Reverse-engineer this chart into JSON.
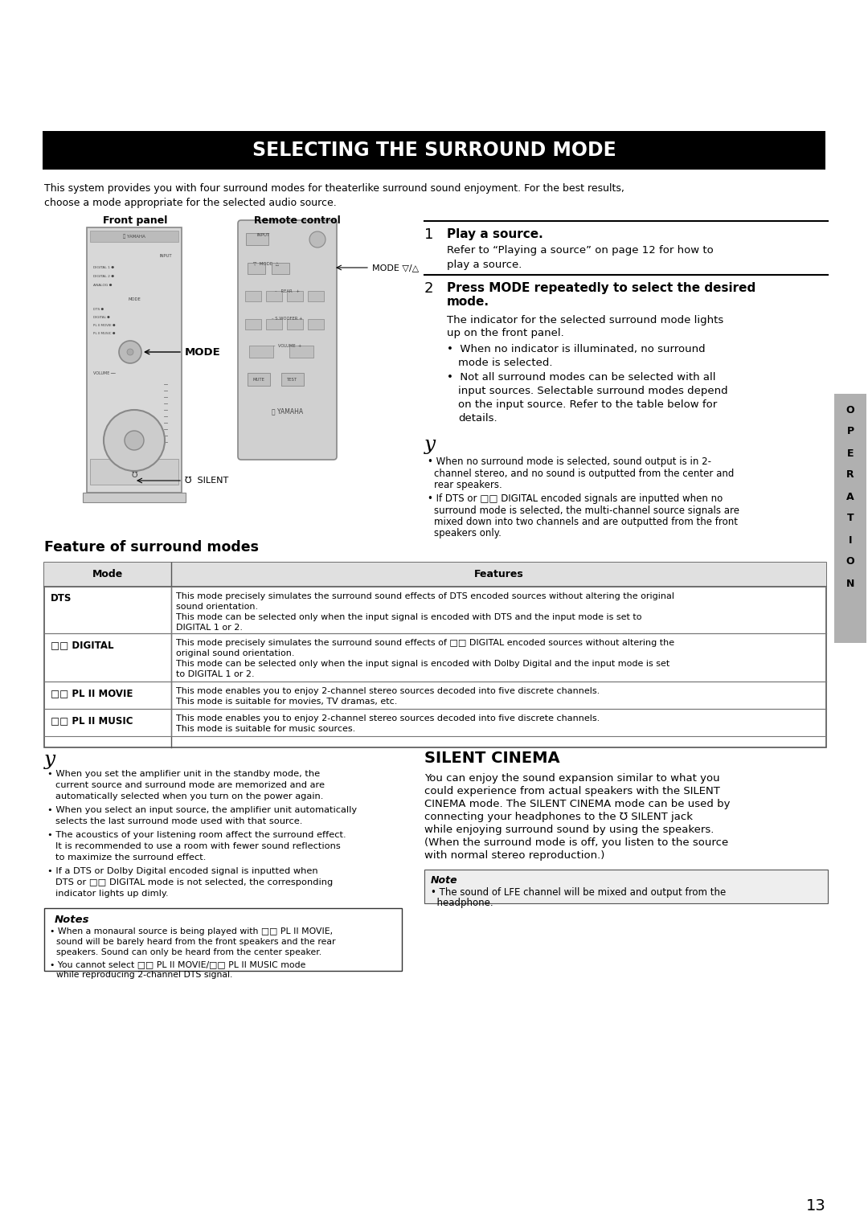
{
  "title": "SELECTING THE SURROUND MODE",
  "title_bg": "#000000",
  "title_color": "#ffffff",
  "page_bg": "#ffffff",
  "page_number": "13",
  "intro_text1": "This system provides you with four surround modes for theaterlike surround sound enjoyment. For the best results,",
  "intro_text2": "choose a mode appropriate for the selected audio source.",
  "front_panel_label": "Front panel",
  "remote_control_label": "Remote control",
  "mode_label": "MODE",
  "mode_remote_label": "MODE ▽/△",
  "silent_label": "℧  SILENT",
  "step1_num": "1",
  "step1_title": "Play a source.",
  "step1_text": "Refer to “Playing a source” on page 12 for how to\nplay a source.",
  "step2_num": "2",
  "step2_title": "Press MODE repeatedly to select the desired\nmode.",
  "step2_text": "The indicator for the selected surround mode lights\nup on the front panel.",
  "step2_bullet1": "When no indicator is illuminated, no surround\nmode is selected.",
  "step2_bullet2": "Not all surround modes can be selected with all\ninput sources. Selectable surround modes depend\non the input source. Refer to the table below for\ndetails.",
  "note_symbol": "y",
  "note_bullet1": "When no surround mode is selected, sound output is in 2-\nchannel stereo, and no sound is outputted from the center and\nrear speakers.",
  "note_bullet2": "If DTS or □□ DIGITAL encoded signals are inputted when no\nsurround mode is selected, the multi-channel source signals are\nmixed down into two channels and are outputted from the front\nspeakers only.",
  "operation_label": "OPERATION",
  "feature_title": "Feature of surround modes",
  "table_header_mode": "Mode",
  "table_header_feat": "Features",
  "table_rows": [
    {
      "mode": "DTS",
      "features_line1": "This mode precisely simulates the surround sound effects of DTS encoded sources without altering the original",
      "features_line2": "sound orientation.",
      "features_line3": "This mode can be selected only when the input signal is encoded with DTS and the input mode is set to",
      "features_line4": "DIGITAL 1 or 2."
    },
    {
      "mode": "□□ DIGITAL",
      "features_line1": "This mode precisely simulates the surround sound effects of □□ DIGITAL encoded sources without altering the",
      "features_line2": "original sound orientation.",
      "features_line3": "This mode can be selected only when the input signal is encoded with Dolby Digital and the input mode is set",
      "features_line4": "to DIGITAL 1 or 2."
    },
    {
      "mode": "□□ PL II MOVIE",
      "features_line1": "This mode enables you to enjoy 2-channel stereo sources decoded into five discrete channels.",
      "features_line2": "This mode is suitable for movies, TV dramas, etc.",
      "features_line3": "",
      "features_line4": ""
    },
    {
      "mode": "□□ PL II MUSIC",
      "features_line1": "This mode enables you to enjoy 2-channel stereo sources decoded into five discrete channels.",
      "features_line2": "This mode is suitable for music sources.",
      "features_line3": "",
      "features_line4": ""
    }
  ],
  "bottom_note_sym": "y",
  "bl1": "When you set the amplifier unit in the standby mode, the\ncurrent source and surround mode are memorized and are\nautomatically selected when you turn on the power again.",
  "bl2": "When you select an input source, the amplifier unit automatically\nselects the last surround mode used with that source.",
  "bl3": "The acoustics of your listening room affect the surround effect.\nIt is recommended to use a room with fewer sound reflections\nto maximize the surround effect.",
  "bl4": "If a DTS or Dolby Digital encoded signal is inputted when\nDTS or □□ DIGITAL mode is not selected, the corresponding\nindicator lights up dimly.",
  "notes_label": "Notes",
  "nb1": "When a monaural source is being played with □□ PL II MOVIE,\nsound will be barely heard from the front speakers and the rear\nspeakers. Sound can only be heard from the center speaker.",
  "nb2": "You cannot select □□ PL II MOVIE/□□ PL II MUSIC mode\nwhile reproducing 2-channel DTS signal.",
  "sc_title": "SILENT CINEMA",
  "sc_text1": "You can enjoy the sound expansion similar to what you",
  "sc_text2": "could experience from actual speakers with the SILENT",
  "sc_text3": "CINEMA mode. The SILENT CINEMA mode can be used by",
  "sc_text4": "connecting your headphones to the ℧ SILENT jack",
  "sc_text5": "while enjoying surround sound by using the speakers.",
  "sc_text6": "(When the surround mode is off, you listen to the source",
  "sc_text7": "with normal stereo reproduction.)",
  "sc_note_label": "Note",
  "sc_note_text": "• The sound of LFE channel will be mixed and output from the\n  headphone."
}
